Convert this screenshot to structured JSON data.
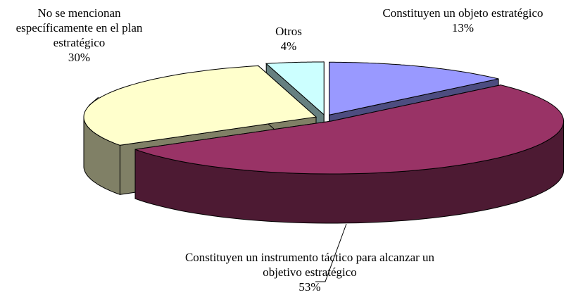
{
  "chart_data": {
    "type": "pie3d",
    "categories": [
      "Constituyen un objeto estratégico",
      "Constituyen un instrumento táctico para alcanzar un objetivo estratégico",
      "No se mencionan específicamente en el plan estratégico",
      "Otros"
    ],
    "values": [
      13,
      53,
      30,
      4
    ],
    "value_labels": [
      "13%",
      "53%",
      "30%",
      "4%"
    ],
    "colors": [
      "#9999ff",
      "#993366",
      "#ffffcc",
      "#ccffff"
    ]
  }
}
